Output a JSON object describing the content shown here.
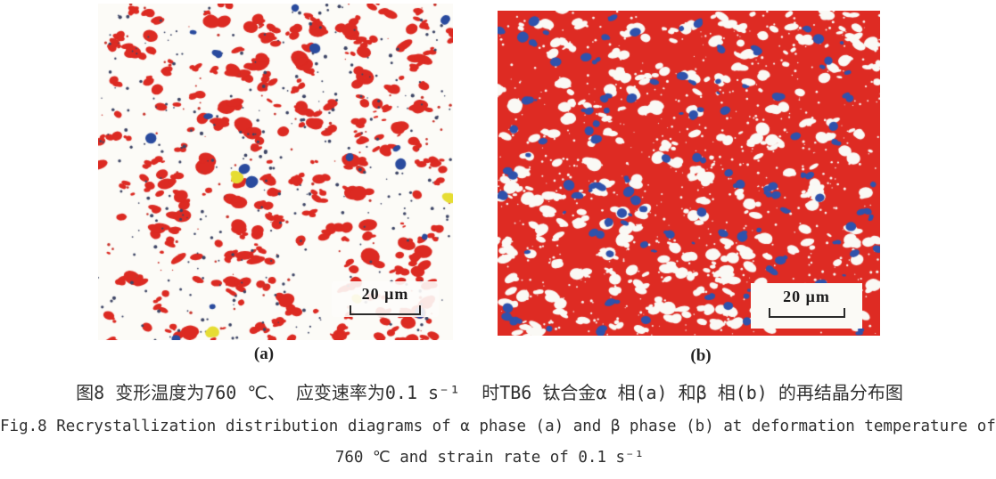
{
  "figure": {
    "panel_a": {
      "label": "(a)",
      "scale_bar_label": "20 μm",
      "background_color": "#fcfbf7",
      "red_color": "#dc2a22",
      "blue_color": "#2a4b9e",
      "dot_color": "#3d4565",
      "dot_red_color": "#c8342c",
      "yellow_color": "#e6dd33"
    },
    "panel_b": {
      "label": "(b)",
      "scale_bar_label": "20 μm",
      "background_color": "#de2b23",
      "white_color": "#faf9f5",
      "blue_color": "#2f52ac"
    },
    "caption_zh": "图8 变形温度为760 ℃、 应变速率为0.1 s⁻¹  时TB6 钛合金α 相(a) 和β 相(b) 的再结晶分布图",
    "caption_en_line1": "Fig.8 Recrystallization distribution diagrams of α phase (a) and β phase (b) at deformation temperature of",
    "caption_en_line2": "760 ℃ and strain rate of 0.1 s⁻¹"
  },
  "render": {
    "panel_a": {
      "seed": 420024,
      "red_blobs": 230,
      "large_red_blobs": 70,
      "tiny_navy_dots": 300,
      "tiny_red_dots": 90,
      "blue_blobs": 16,
      "yellow_blobs": 4
    },
    "panel_b": {
      "seed": 913371,
      "white_blobs": 290,
      "white_specks": 650,
      "blue_blobs": 120
    }
  }
}
